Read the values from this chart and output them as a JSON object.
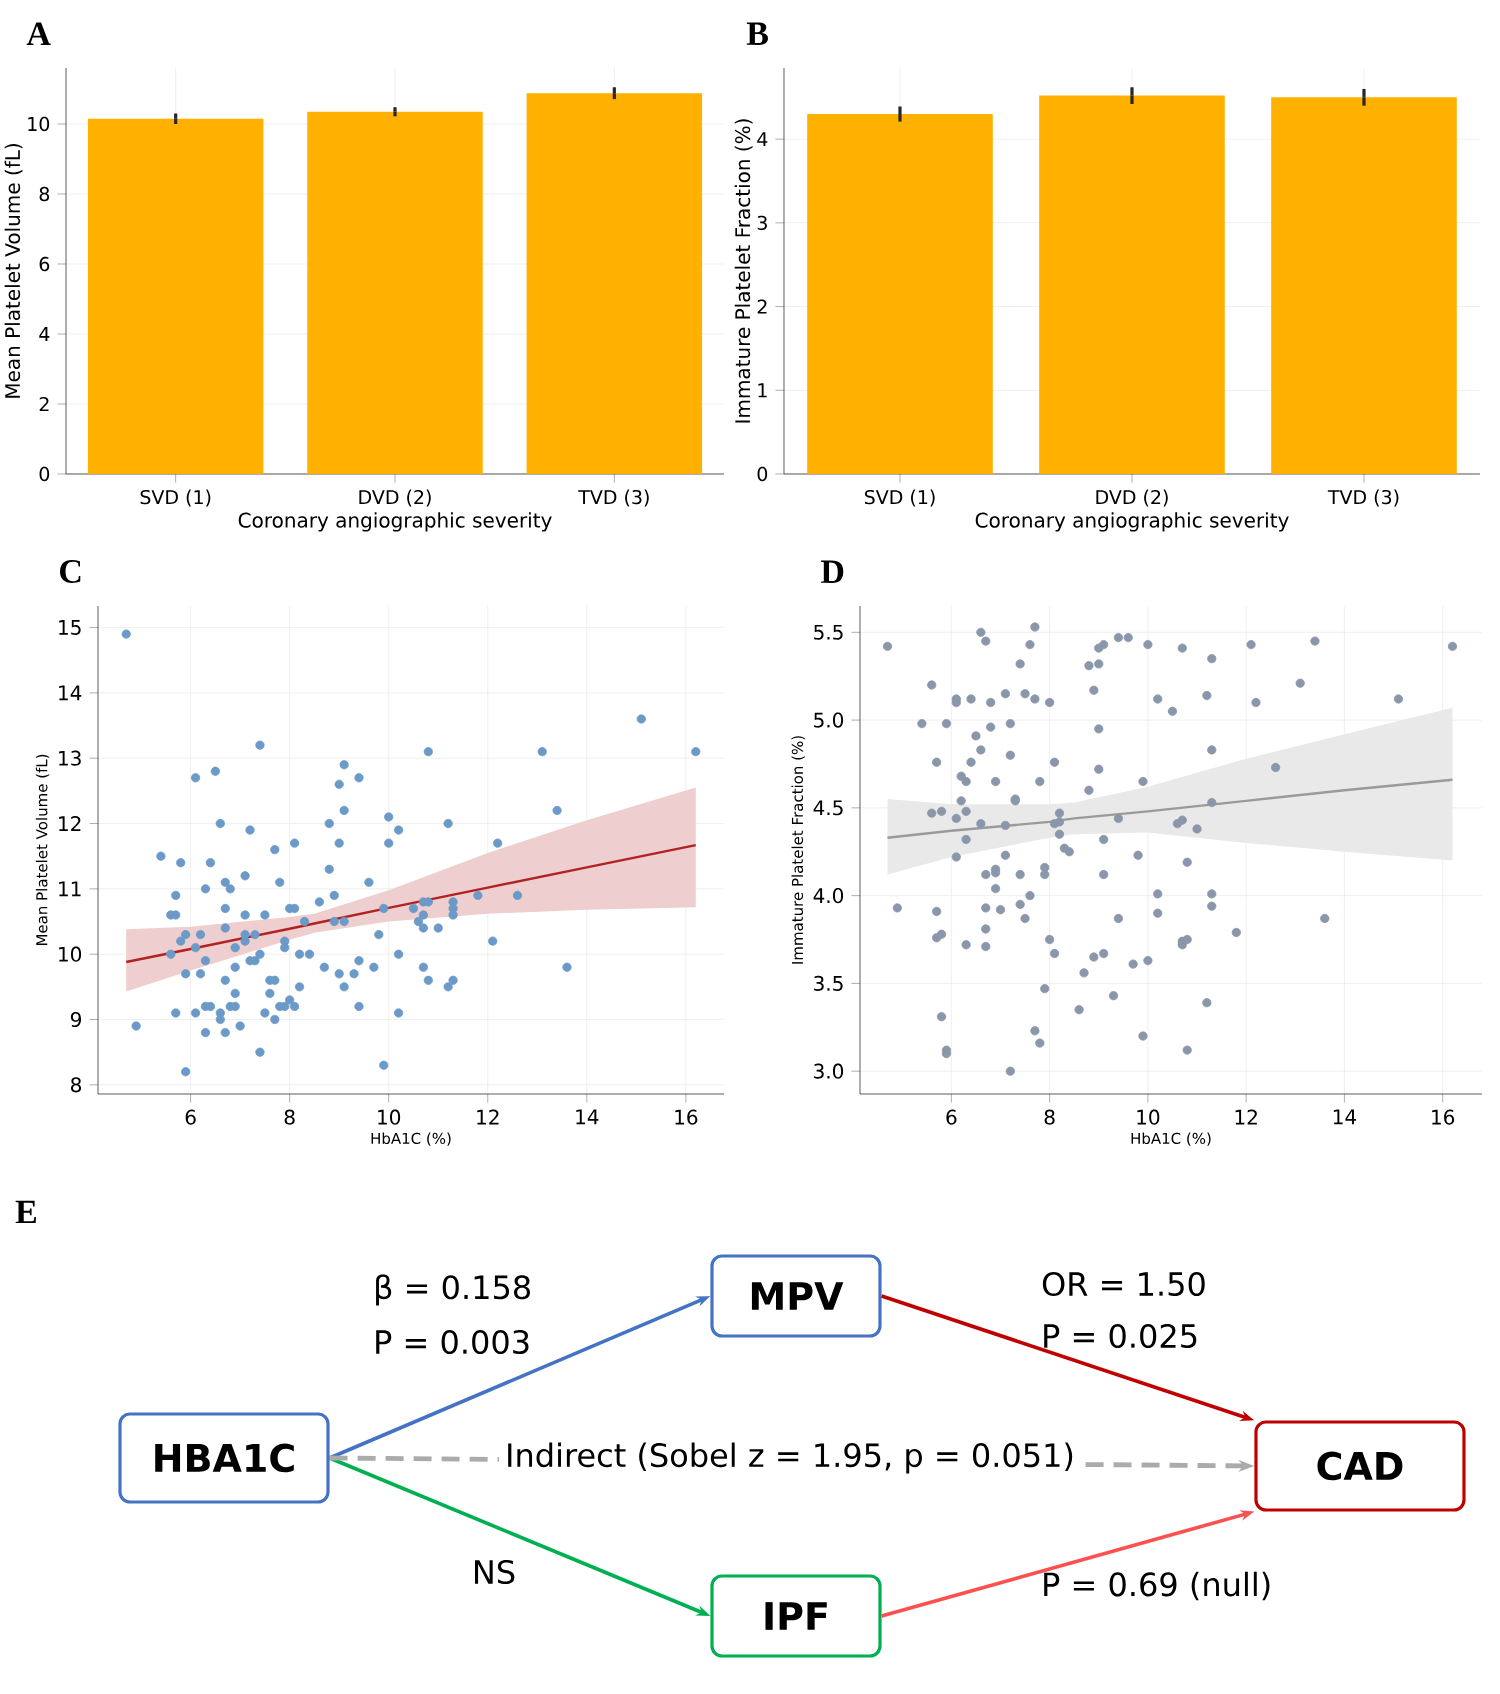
{
  "chart_data": [
    {
      "type": "bar",
      "title": "A",
      "xlabel": "Coronary angiographic severity",
      "ylabel": "Mean Platelet Volume (fL)",
      "categories": [
        "SVD (1)",
        "DVD (2)",
        "TVD (3)"
      ],
      "values": [
        10.15,
        10.35,
        10.88
      ],
      "errors": [
        0.15,
        0.13,
        0.17
      ],
      "color": "#ffb000",
      "ylim": [
        0,
        11.6
      ],
      "yticks": [
        0,
        2,
        4,
        6,
        8,
        10
      ],
      "grid": true
    },
    {
      "type": "bar",
      "title": "B",
      "xlabel": "Coronary angiographic severity",
      "ylabel": "Immature Platelet Fraction (%)",
      "categories": [
        "SVD (1)",
        "DVD (2)",
        "TVD (3)"
      ],
      "values": [
        4.3,
        4.52,
        4.5
      ],
      "errors": [
        0.09,
        0.1,
        0.1
      ],
      "color": "#ffb000",
      "ylim": [
        0,
        4.85
      ],
      "yticks": [
        0,
        1,
        2,
        3,
        4
      ],
      "grid": true
    },
    {
      "type": "scatter",
      "title": "C",
      "xlabel": "HbA1C (%)",
      "ylabel": "Mean Platelet Volume (fL)",
      "grid": true,
      "xlim": [
        4.13,
        16.77
      ],
      "ylim": [
        7.86,
        15.33
      ],
      "xticks": [
        6,
        8,
        10,
        12,
        14,
        16
      ],
      "yticks": [
        8,
        9,
        10,
        11,
        12,
        13,
        14,
        15
      ],
      "series": [
        {
          "type": "scatter",
          "marker": "circle",
          "color": "#6b9ac8",
          "x": [
            4.7,
            4.9,
            5.4,
            5.6,
            5.6,
            5.7,
            5.7,
            5.7,
            5.8,
            5.8,
            5.9,
            5.9,
            5.9,
            6.1,
            6.1,
            6.1,
            6.2,
            6.2,
            6.3,
            6.3,
            6.3,
            6.3,
            6.4,
            6.4,
            6.5,
            6.6,
            6.6,
            6.6,
            6.7,
            6.7,
            6.7,
            6.7,
            6.7,
            6.8,
            6.8,
            6.9,
            6.9,
            6.9,
            6.9,
            7.0,
            7.1,
            7.1,
            7.1,
            7.1,
            7.2,
            7.2,
            7.3,
            7.3,
            7.4,
            7.4,
            7.4,
            7.5,
            7.5,
            7.6,
            7.6,
            7.7,
            7.7,
            7.7,
            7.8,
            7.8,
            7.9,
            7.9,
            7.9,
            8.0,
            8.0,
            8.1,
            8.1,
            8.1,
            8.2,
            8.2,
            8.3,
            8.4,
            8.6,
            8.7,
            8.8,
            8.8,
            8.9,
            8.9,
            9.0,
            9.0,
            9.0,
            9.1,
            9.1,
            9.1,
            9.1,
            9.3,
            9.4,
            9.4,
            9.4,
            9.6,
            9.7,
            9.8,
            9.9,
            9.9,
            10.0,
            10.0,
            10.2,
            10.2,
            10.2,
            10.5,
            10.6,
            10.7,
            10.7,
            10.7,
            10.7,
            10.8,
            10.8,
            10.8,
            11.0,
            11.2,
            11.2,
            11.3,
            11.3,
            11.3,
            11.3,
            11.8,
            12.1,
            12.2,
            12.6,
            13.1,
            13.4,
            13.6,
            15.1,
            16.2
          ],
          "values": [
            14.9,
            8.9,
            11.5,
            10.6,
            10.0,
            10.9,
            10.6,
            9.1,
            11.4,
            10.2,
            10.3,
            9.7,
            8.2,
            12.7,
            10.1,
            9.1,
            10.3,
            9.7,
            11.0,
            9.9,
            9.2,
            8.8,
            11.4,
            9.2,
            12.8,
            12.0,
            9.1,
            9.0,
            11.1,
            10.7,
            10.4,
            9.6,
            8.8,
            11.0,
            9.2,
            10.1,
            9.8,
            9.4,
            9.2,
            8.9,
            11.2,
            10.6,
            10.3,
            10.2,
            11.9,
            9.9,
            9.9,
            10.3,
            13.2,
            10.0,
            8.5,
            10.6,
            9.1,
            9.6,
            9.4,
            11.6,
            9.6,
            9.0,
            11.1,
            9.2,
            10.2,
            10.1,
            9.2,
            10.7,
            9.3,
            11.7,
            10.7,
            9.2,
            10.0,
            9.5,
            10.5,
            10.0,
            10.8,
            9.8,
            12.0,
            11.3,
            10.9,
            10.5,
            12.6,
            11.7,
            9.7,
            12.9,
            12.2,
            10.5,
            9.5,
            9.7,
            12.7,
            9.9,
            9.2,
            11.1,
            9.8,
            10.3,
            10.7,
            8.3,
            12.1,
            11.7,
            11.9,
            10.0,
            9.1,
            10.7,
            10.5,
            10.8,
            10.6,
            10.4,
            9.8,
            13.1,
            10.8,
            9.6,
            10.4,
            12.0,
            9.5,
            10.8,
            10.7,
            10.6,
            9.6,
            10.9,
            10.2,
            11.7,
            10.9,
            13.1,
            12.2,
            9.8,
            13.6,
            13.1
          ]
        },
        {
          "type": "line",
          "color": "#b22222",
          "x": [
            4.7,
            6,
            8,
            8.5,
            10,
            12,
            14,
            16.2
          ],
          "values": [
            9.88,
            10.08,
            10.39,
            10.47,
            10.71,
            11.02,
            11.33,
            11.67
          ],
          "lower": [
            9.43,
            9.75,
            10.22,
            10.33,
            10.5,
            10.62,
            10.68,
            10.72
          ],
          "upper": [
            10.38,
            10.42,
            10.57,
            10.62,
            10.98,
            11.55,
            12.05,
            12.55
          ]
        }
      ]
    },
    {
      "type": "scatter",
      "title": "D",
      "xlabel": "HbA1C (%)",
      "ylabel": "Immature Platelet Fraction (%)",
      "grid": true,
      "xlim": [
        4.14,
        16.8
      ],
      "ylim": [
        2.87,
        5.65
      ],
      "xticks": [
        6,
        8,
        10,
        12,
        14,
        16
      ],
      "yticks": [
        {
          "value": 3,
          "label": "3.0"
        },
        3.5,
        {
          "value": 4,
          "label": "4.0"
        },
        4.5,
        {
          "value": 5,
          "label": "5.0"
        },
        5.5
      ],
      "series": [
        {
          "type": "scatter",
          "marker": "circle",
          "color": "#8a97aa",
          "x": [
            4.7,
            4.9,
            5.4,
            5.6,
            5.6,
            5.7,
            5.7,
            5.7,
            5.8,
            5.8,
            5.8,
            5.9,
            5.9,
            5.9,
            6.1,
            6.1,
            6.1,
            6.1,
            6.2,
            6.2,
            6.3,
            6.3,
            6.3,
            6.3,
            6.4,
            6.4,
            6.5,
            6.6,
            6.6,
            6.6,
            6.7,
            6.7,
            6.7,
            6.7,
            6.7,
            6.8,
            6.8,
            6.9,
            6.9,
            6.9,
            6.9,
            7.0,
            7.1,
            7.1,
            7.1,
            7.2,
            7.2,
            7.2,
            7.3,
            7.3,
            7.4,
            7.4,
            7.4,
            7.5,
            7.5,
            7.6,
            7.6,
            7.7,
            7.7,
            7.7,
            7.8,
            7.8,
            7.9,
            7.9,
            7.9,
            8.0,
            8.0,
            8.1,
            8.1,
            8.1,
            8.2,
            8.2,
            8.2,
            8.3,
            8.4,
            8.6,
            8.7,
            8.8,
            8.8,
            8.9,
            8.9,
            9.0,
            9.0,
            9.0,
            9.0,
            9.1,
            9.1,
            9.1,
            9.1,
            9.3,
            9.4,
            9.4,
            9.4,
            9.6,
            9.7,
            9.8,
            9.9,
            9.9,
            10.0,
            10.0,
            10.2,
            10.2,
            10.2,
            10.5,
            10.6,
            10.7,
            10.7,
            10.7,
            10.7,
            10.8,
            10.8,
            10.8,
            11.0,
            11.2,
            11.2,
            11.3,
            11.3,
            11.3,
            11.3,
            11.3,
            11.8,
            12.1,
            12.2,
            12.6,
            13.1,
            13.4,
            13.6,
            15.1,
            16.2
          ],
          "values": [
            5.42,
            3.93,
            4.98,
            5.2,
            4.47,
            4.76,
            3.91,
            3.76,
            4.48,
            3.78,
            3.31,
            4.98,
            3.12,
            3.1,
            5.12,
            5.1,
            4.44,
            4.22,
            4.68,
            4.54,
            4.65,
            4.48,
            4.32,
            3.72,
            5.12,
            4.76,
            4.91,
            5.5,
            4.83,
            4.41,
            5.45,
            4.12,
            3.93,
            3.81,
            3.71,
            5.1,
            4.96,
            4.65,
            4.15,
            4.13,
            4.04,
            3.92,
            5.15,
            4.4,
            4.23,
            4.98,
            4.8,
            3.0,
            4.55,
            4.54,
            5.32,
            4.12,
            3.95,
            5.15,
            3.87,
            5.43,
            4.0,
            5.53,
            5.12,
            3.23,
            4.65,
            3.16,
            4.16,
            4.12,
            3.47,
            5.1,
            3.75,
            4.76,
            4.41,
            3.67,
            4.47,
            4.42,
            4.35,
            4.27,
            4.25,
            3.35,
            3.56,
            5.31,
            4.6,
            5.17,
            3.65,
            5.41,
            5.32,
            4.95,
            4.72,
            5.43,
            4.32,
            4.12,
            3.67,
            3.43,
            5.47,
            4.44,
            3.87,
            5.47,
            3.61,
            4.23,
            4.65,
            3.2,
            5.43,
            3.63,
            5.12,
            4.01,
            3.9,
            5.05,
            4.41,
            5.41,
            4.43,
            3.74,
            3.72,
            4.19,
            3.75,
            3.12,
            4.38,
            5.14,
            3.39,
            5.35,
            4.83,
            4.53,
            4.01,
            3.94,
            3.79,
            5.43,
            5.1,
            4.73,
            5.21,
            5.45,
            3.87,
            5.12,
            5.42
          ]
        },
        {
          "type": "line",
          "color": "#9a9a9a",
          "x": [
            4.7,
            6,
            8,
            8.5,
            10,
            12,
            14,
            16.2
          ],
          "values": [
            4.33,
            4.37,
            4.42,
            4.44,
            4.48,
            4.54,
            4.6,
            4.66
          ],
          "lower": [
            4.12,
            4.22,
            4.33,
            4.35,
            4.36,
            4.3,
            4.25,
            4.2
          ],
          "upper": [
            4.55,
            4.52,
            4.52,
            4.53,
            4.62,
            4.78,
            4.92,
            5.07
          ]
        }
      ]
    },
    {
      "type": "other",
      "title": "E",
      "annotations": [
        "HBA1C",
        "MPV",
        "IPF",
        "CAD",
        "β = 0.158",
        "P = 0.003",
        "OR = 1.50",
        "P = 0.025",
        "Indirect (Sobel z = 1.95, p = 0.051)",
        "NS",
        "P = 0.69 (null)"
      ]
    }
  ]
}
